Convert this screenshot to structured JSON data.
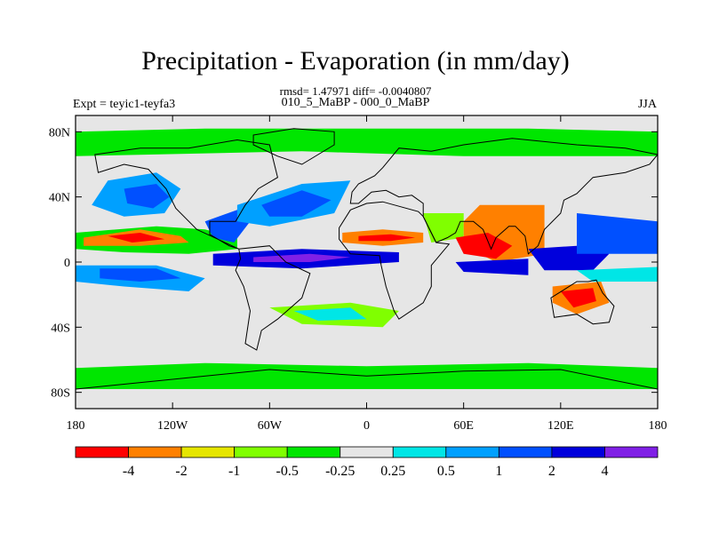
{
  "title": "Precipitation - Evaporation (in mm/day)",
  "stats": "rmsd= 1.47971 diff= -0.0040807",
  "case_label": "010_5_MaBP - 000_0_MaBP",
  "experiment": "Expt = teyic1-teyfa3",
  "season": "JJA",
  "y_axis": {
    "ticks": [
      {
        "lat": 80,
        "label": "80N"
      },
      {
        "lat": 40,
        "label": "40N"
      },
      {
        "lat": 0,
        "label": "0"
      },
      {
        "lat": -40,
        "label": "40S"
      },
      {
        "lat": -80,
        "label": "80S"
      }
    ]
  },
  "x_axis": {
    "ticks": [
      {
        "lon": -180,
        "label": "180"
      },
      {
        "lon": -120,
        "label": "120W"
      },
      {
        "lon": -60,
        "label": "60W"
      },
      {
        "lon": 0,
        "label": "0"
      },
      {
        "lon": 60,
        "label": "60E"
      },
      {
        "lon": 120,
        "label": "120E"
      },
      {
        "lon": 180,
        "label": "180"
      }
    ]
  },
  "colorbar": {
    "colors": [
      "#ff0000",
      "#ff8000",
      "#e6e600",
      "#80ff00",
      "#00e600",
      "#e6e6e6",
      "#00e6e6",
      "#00a0ff",
      "#0050ff",
      "#0000dc",
      "#8020e6"
    ],
    "labels": [
      "-4",
      "-2",
      "-1",
      "-0.5",
      "-0.25",
      "0.25",
      "0.5",
      "1",
      "2",
      "4"
    ]
  },
  "regions": [
    {
      "name": "pacific-itcz",
      "color": "#00e600",
      "points": [
        [
          -180,
          18
        ],
        [
          -130,
          22
        ],
        [
          -100,
          20
        ],
        [
          -80,
          15
        ],
        [
          -80,
          8
        ],
        [
          -110,
          5
        ],
        [
          -150,
          6
        ],
        [
          -180,
          8
        ]
      ]
    },
    {
      "name": "north-pacific-blue",
      "color": "#00a0ff",
      "points": [
        [
          -160,
          50
        ],
        [
          -130,
          55
        ],
        [
          -115,
          45
        ],
        [
          -125,
          30
        ],
        [
          -150,
          28
        ],
        [
          -170,
          35
        ]
      ]
    },
    {
      "name": "north-pacific-core",
      "color": "#0050ff",
      "points": [
        [
          -150,
          45
        ],
        [
          -130,
          48
        ],
        [
          -122,
          40
        ],
        [
          -132,
          33
        ],
        [
          -148,
          36
        ]
      ]
    },
    {
      "name": "tropical-pacific-red",
      "color": "#ff8000",
      "points": [
        [
          -175,
          15
        ],
        [
          -140,
          20
        ],
        [
          -115,
          16
        ],
        [
          -110,
          12
        ],
        [
          -140,
          10
        ],
        [
          -175,
          10
        ]
      ]
    },
    {
      "name": "tropical-pacific-red-core",
      "color": "#ff0000",
      "points": [
        [
          -160,
          16
        ],
        [
          -140,
          18
        ],
        [
          -125,
          14
        ],
        [
          -145,
          12
        ]
      ]
    },
    {
      "name": "south-pacific-blue",
      "color": "#00a0ff",
      "points": [
        [
          -180,
          -2
        ],
        [
          -130,
          -2
        ],
        [
          -100,
          -10
        ],
        [
          -110,
          -18
        ],
        [
          -150,
          -15
        ],
        [
          -180,
          -12
        ]
      ]
    },
    {
      "name": "south-pacific-core",
      "color": "#0050ff",
      "points": [
        [
          -165,
          -4
        ],
        [
          -130,
          -4
        ],
        [
          -115,
          -10
        ],
        [
          -140,
          -12
        ],
        [
          -165,
          -10
        ]
      ]
    },
    {
      "name": "equatorial-atlantic-blue",
      "color": "#0000dc",
      "points": [
        [
          -95,
          5
        ],
        [
          -40,
          8
        ],
        [
          20,
          6
        ],
        [
          20,
          0
        ],
        [
          -40,
          -4
        ],
        [
          -95,
          -2
        ]
      ]
    },
    {
      "name": "equatorial-atlantic-purple",
      "color": "#8020e6",
      "points": [
        [
          -70,
          3
        ],
        [
          -35,
          5
        ],
        [
          -10,
          3
        ],
        [
          -35,
          0
        ],
        [
          -70,
          0
        ]
      ]
    },
    {
      "name": "central-america-blue",
      "color": "#0050ff",
      "points": [
        [
          -100,
          25
        ],
        [
          -80,
          32
        ],
        [
          -72,
          25
        ],
        [
          -82,
          12
        ],
        [
          -95,
          15
        ]
      ]
    },
    {
      "name": "north-atlantic-blue",
      "color": "#00a0ff",
      "points": [
        [
          -80,
          35
        ],
        [
          -40,
          48
        ],
        [
          -10,
          50
        ],
        [
          -20,
          30
        ],
        [
          -60,
          22
        ],
        [
          -80,
          25
        ]
      ]
    },
    {
      "name": "north-atlantic-core",
      "color": "#0050ff",
      "points": [
        [
          -65,
          35
        ],
        [
          -40,
          44
        ],
        [
          -22,
          38
        ],
        [
          -40,
          28
        ],
        [
          -60,
          28
        ]
      ]
    },
    {
      "name": "africa-sahel-orange",
      "color": "#ff8000",
      "points": [
        [
          -15,
          18
        ],
        [
          10,
          20
        ],
        [
          35,
          18
        ],
        [
          35,
          12
        ],
        [
          10,
          10
        ],
        [
          -15,
          12
        ]
      ]
    },
    {
      "name": "africa-sahel-red",
      "color": "#ff0000",
      "points": [
        [
          -5,
          16
        ],
        [
          15,
          17
        ],
        [
          30,
          15
        ],
        [
          15,
          13
        ],
        [
          -5,
          13
        ]
      ]
    },
    {
      "name": "arabia-green",
      "color": "#80ff00",
      "points": [
        [
          35,
          30
        ],
        [
          60,
          30
        ],
        [
          60,
          15
        ],
        [
          40,
          12
        ]
      ]
    },
    {
      "name": "india-red",
      "color": "#ff0000",
      "points": [
        [
          68,
          28
        ],
        [
          90,
          32
        ],
        [
          105,
          28
        ],
        [
          100,
          10
        ],
        [
          80,
          8
        ],
        [
          70,
          15
        ]
      ]
    },
    {
      "name": "india-orange",
      "color": "#ff8000",
      "points": [
        [
          60,
          25
        ],
        [
          70,
          35
        ],
        [
          110,
          35
        ],
        [
          110,
          5
        ],
        [
          80,
          0
        ],
        [
          60,
          10
        ]
      ]
    },
    {
      "name": "arabian-sea-red",
      "color": "#ff0000",
      "points": [
        [
          55,
          15
        ],
        [
          75,
          18
        ],
        [
          90,
          10
        ],
        [
          80,
          2
        ],
        [
          60,
          5
        ]
      ]
    },
    {
      "name": "indian-ocean-blue",
      "color": "#0000dc",
      "points": [
        [
          55,
          0
        ],
        [
          100,
          2
        ],
        [
          100,
          -8
        ],
        [
          60,
          -6
        ]
      ]
    },
    {
      "name": "indonesia-blue",
      "color": "#0000dc",
      "points": [
        [
          100,
          8
        ],
        [
          130,
          10
        ],
        [
          150,
          5
        ],
        [
          140,
          -5
        ],
        [
          110,
          -5
        ]
      ]
    },
    {
      "name": "west-pacific-blue",
      "color": "#0050ff",
      "points": [
        [
          130,
          30
        ],
        [
          180,
          25
        ],
        [
          180,
          5
        ],
        [
          130,
          5
        ]
      ]
    },
    {
      "name": "west-pacific-cyan",
      "color": "#00e6e6",
      "points": [
        [
          130,
          -5
        ],
        [
          180,
          -3
        ],
        [
          180,
          -12
        ],
        [
          140,
          -12
        ]
      ]
    },
    {
      "name": "australia-orange",
      "color": "#ff8000",
      "points": [
        [
          115,
          -15
        ],
        [
          145,
          -12
        ],
        [
          150,
          -25
        ],
        [
          130,
          -32
        ],
        [
          115,
          -25
        ]
      ]
    },
    {
      "name": "australia-red",
      "color": "#ff0000",
      "points": [
        [
          120,
          -18
        ],
        [
          140,
          -16
        ],
        [
          142,
          -24
        ],
        [
          128,
          -28
        ]
      ]
    },
    {
      "name": "arctic-green",
      "color": "#00e600",
      "points": [
        [
          -180,
          80
        ],
        [
          -100,
          82
        ],
        [
          0,
          82
        ],
        [
          100,
          82
        ],
        [
          180,
          80
        ],
        [
          180,
          65
        ],
        [
          60,
          65
        ],
        [
          -40,
          68
        ],
        [
          -180,
          65
        ]
      ]
    },
    {
      "name": "southern-ocean-green",
      "color": "#00e600",
      "points": [
        [
          -180,
          -65
        ],
        [
          -100,
          -62
        ],
        [
          0,
          -64
        ],
        [
          100,
          -62
        ],
        [
          180,
          -65
        ],
        [
          180,
          -78
        ],
        [
          -180,
          -78
        ]
      ]
    },
    {
      "name": "south-atlantic-green",
      "color": "#80ff00",
      "points": [
        [
          -60,
          -28
        ],
        [
          -10,
          -25
        ],
        [
          20,
          -30
        ],
        [
          10,
          -40
        ],
        [
          -40,
          -38
        ]
      ]
    },
    {
      "name": "south-atlantic-cyan",
      "color": "#00e6e6",
      "points": [
        [
          -45,
          -30
        ],
        [
          -10,
          -28
        ],
        [
          0,
          -35
        ],
        [
          -30,
          -36
        ]
      ]
    }
  ],
  "continents": [
    {
      "name": "north-america",
      "points": [
        [
          -168,
          66
        ],
        [
          -140,
          70
        ],
        [
          -110,
          70
        ],
        [
          -80,
          75
        ],
        [
          -60,
          72
        ],
        [
          -55,
          52
        ],
        [
          -67,
          45
        ],
        [
          -75,
          35
        ],
        [
          -81,
          25
        ],
        [
          -97,
          25
        ],
        [
          -97,
          17
        ],
        [
          -85,
          10
        ],
        [
          -79,
          8
        ],
        [
          -105,
          20
        ],
        [
          -118,
          33
        ],
        [
          -124,
          45
        ],
        [
          -135,
          57
        ],
        [
          -150,
          60
        ],
        [
          -166,
          55
        ]
      ]
    },
    {
      "name": "south-america",
      "points": [
        [
          -79,
          8
        ],
        [
          -60,
          10
        ],
        [
          -50,
          0
        ],
        [
          -35,
          -7
        ],
        [
          -40,
          -22
        ],
        [
          -55,
          -35
        ],
        [
          -65,
          -42
        ],
        [
          -68,
          -54
        ],
        [
          -75,
          -50
        ],
        [
          -72,
          -30
        ],
        [
          -76,
          -15
        ],
        [
          -81,
          -5
        ],
        [
          -78,
          2
        ]
      ]
    },
    {
      "name": "eurasia",
      "points": [
        [
          -10,
          36
        ],
        [
          -9,
          43
        ],
        [
          -5,
          48
        ],
        [
          5,
          53
        ],
        [
          10,
          58
        ],
        [
          20,
          70
        ],
        [
          40,
          68
        ],
        [
          60,
          72
        ],
        [
          90,
          76
        ],
        [
          130,
          72
        ],
        [
          160,
          70
        ],
        [
          180,
          66
        ],
        [
          175,
          60
        ],
        [
          160,
          55
        ],
        [
          140,
          52
        ],
        [
          130,
          42
        ],
        [
          122,
          38
        ],
        [
          120,
          30
        ],
        [
          110,
          20
        ],
        [
          106,
          10
        ],
        [
          100,
          5
        ],
        [
          98,
          16
        ],
        [
          92,
          22
        ],
        [
          88,
          22
        ],
        [
          80,
          15
        ],
        [
          77,
          8
        ],
        [
          72,
          20
        ],
        [
          66,
          25
        ],
        [
          58,
          25
        ],
        [
          55,
          18
        ],
        [
          50,
          15
        ],
        [
          43,
          12
        ],
        [
          35,
          28
        ],
        [
          35,
          36
        ],
        [
          28,
          41
        ],
        [
          20,
          40
        ],
        [
          12,
          44
        ],
        [
          3,
          43
        ],
        [
          -5,
          36
        ]
      ]
    },
    {
      "name": "africa",
      "points": [
        [
          -17,
          21
        ],
        [
          -10,
          32
        ],
        [
          0,
          36
        ],
        [
          10,
          37
        ],
        [
          32,
          31
        ],
        [
          35,
          28
        ],
        [
          43,
          12
        ],
        [
          51,
          11
        ],
        [
          40,
          -2
        ],
        [
          40,
          -15
        ],
        [
          35,
          -25
        ],
        [
          20,
          -35
        ],
        [
          17,
          -30
        ],
        [
          12,
          -15
        ],
        [
          9,
          -2
        ],
        [
          8,
          4
        ],
        [
          -10,
          5
        ],
        [
          -17,
          14
        ]
      ]
    },
    {
      "name": "australia",
      "points": [
        [
          114,
          -22
        ],
        [
          122,
          -17
        ],
        [
          130,
          -12
        ],
        [
          137,
          -12
        ],
        [
          142,
          -11
        ],
        [
          146,
          -19
        ],
        [
          153,
          -27
        ],
        [
          150,
          -37
        ],
        [
          140,
          -38
        ],
        [
          130,
          -32
        ],
        [
          116,
          -34
        ]
      ]
    },
    {
      "name": "greenland",
      "points": [
        [
          -70,
          78
        ],
        [
          -45,
          82
        ],
        [
          -20,
          80
        ],
        [
          -20,
          72
        ],
        [
          -40,
          60
        ],
        [
          -55,
          65
        ],
        [
          -70,
          72
        ]
      ]
    },
    {
      "name": "antarctica",
      "points": [
        [
          -180,
          -78
        ],
        [
          -120,
          -72
        ],
        [
          -60,
          -66
        ],
        [
          0,
          -70
        ],
        [
          60,
          -67
        ],
        [
          120,
          -66
        ],
        [
          180,
          -78
        ],
        [
          180,
          -90
        ],
        [
          -180,
          -90
        ]
      ]
    }
  ]
}
